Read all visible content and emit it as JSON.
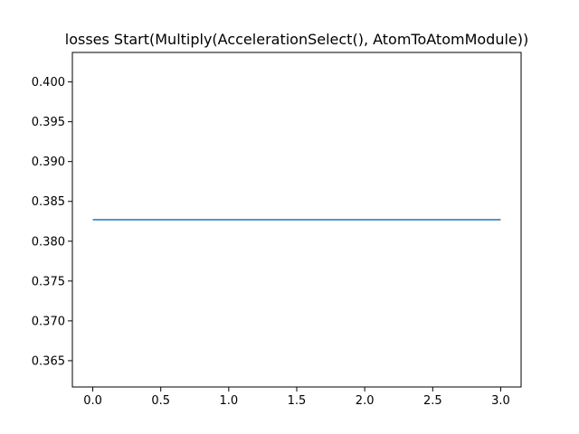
{
  "chart_data": {
    "type": "line",
    "title": "losses Start(Multiply(AccelerationSelect(), AtomToAtomModule))",
    "xlabel": "",
    "ylabel": "",
    "xlim": [
      -0.15,
      3.15
    ],
    "ylim": [
      0.3617,
      0.4037
    ],
    "x_ticks": [
      0.0,
      0.5,
      1.0,
      1.5,
      2.0,
      2.5,
      3.0
    ],
    "x_tick_labels": [
      "0.0",
      "0.5",
      "1.0",
      "1.5",
      "2.0",
      "2.5",
      "3.0"
    ],
    "y_ticks": [
      0.365,
      0.37,
      0.375,
      0.38,
      0.385,
      0.39,
      0.395,
      0.4
    ],
    "y_tick_labels": [
      "0.365",
      "0.370",
      "0.375",
      "0.380",
      "0.385",
      "0.390",
      "0.395",
      "0.400"
    ],
    "grid": false,
    "series": [
      {
        "x": [
          0,
          1,
          2,
          3
        ],
        "values": [
          0.3827,
          0.3827,
          0.3827,
          0.3827
        ],
        "color": "#1f77b4"
      }
    ]
  }
}
